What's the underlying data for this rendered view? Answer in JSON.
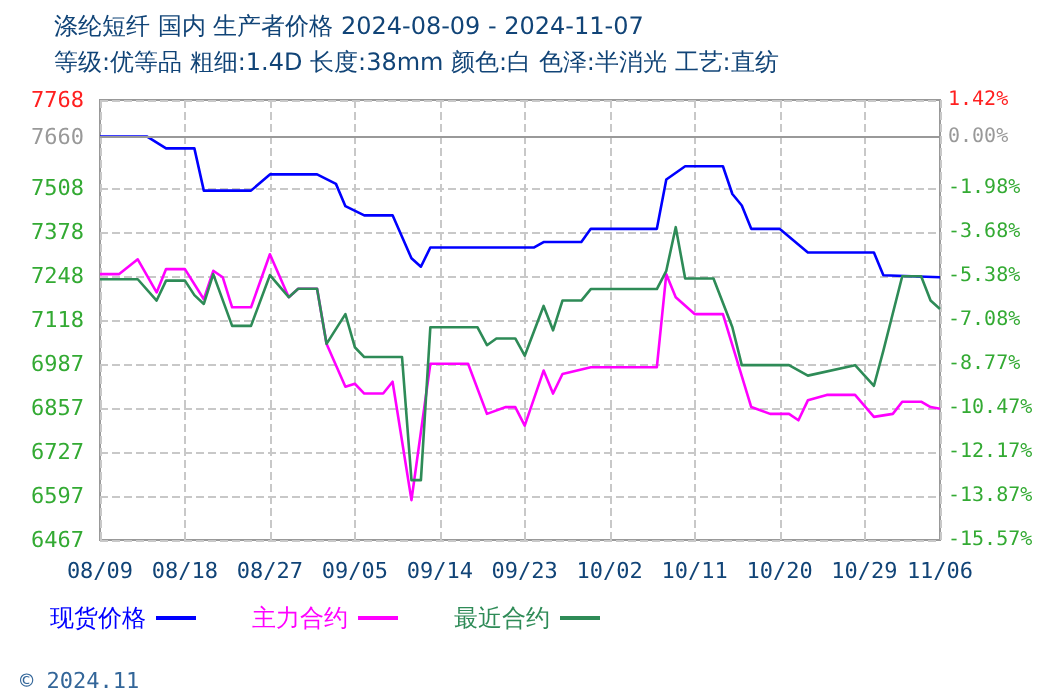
{
  "chart_data": {
    "type": "line",
    "title": "涤纶短纤 国内 生产者价格 2024-08-09 - 2024-11-07",
    "subtitle": "等级:优等品 粗细:1.4D 长度:38mm 颜色:白 色泽:半消光 工艺:直纺",
    "annotations": [
      "© 2024.11"
    ],
    "xlim": [
      "2024-08-09",
      "2024-11-06"
    ],
    "xticks": [
      {
        "value": "2024-08-09",
        "label": "08/09"
      },
      {
        "value": "2024-08-18",
        "label": "08/18"
      },
      {
        "value": "2024-08-27",
        "label": "08/27"
      },
      {
        "value": "2024-09-05",
        "label": "09/05"
      },
      {
        "value": "2024-09-14",
        "label": "09/14"
      },
      {
        "value": "2024-09-23",
        "label": "09/23"
      },
      {
        "value": "2024-10-02",
        "label": "10/02"
      },
      {
        "value": "2024-10-11",
        "label": "10/11"
      },
      {
        "value": "2024-10-20",
        "label": "10/20"
      },
      {
        "value": "2024-10-29",
        "label": "10/29"
      },
      {
        "value": "2024-11-06",
        "label": "11/06"
      }
    ],
    "ylim": [
      6467,
      7768
    ],
    "yticks": [
      6467,
      6597,
      6727,
      6857,
      6987,
      7118,
      7248,
      7378,
      7508,
      7660,
      7768
    ],
    "y2lim": [
      -15.57,
      1.42
    ],
    "y2ticks": [
      {
        "value": -15.57,
        "label": "-15.57%"
      },
      {
        "value": -13.87,
        "label": "-13.87%"
      },
      {
        "value": -12.17,
        "label": "-12.17%"
      },
      {
        "value": -10.47,
        "label": "-10.47%"
      },
      {
        "value": -8.77,
        "label": "-8.77%"
      },
      {
        "value": -7.08,
        "label": "-7.08%"
      },
      {
        "value": -5.38,
        "label": "-5.38%"
      },
      {
        "value": -3.68,
        "label": "-3.68%"
      },
      {
        "value": -1.98,
        "label": "-1.98%"
      },
      {
        "value": 0,
        "label": "0.00%"
      },
      {
        "value": 1.42,
        "label": "1.42%"
      }
    ],
    "ref_lines": [
      {
        "axis": "y2",
        "value": 0,
        "color": "#999999",
        "line_style": "solid"
      }
    ],
    "grid": true,
    "legend": "bottom left",
    "marker": "none",
    "line_style": "solid",
    "series": [
      {
        "name": "现货价格",
        "color": "#0000ff",
        "x": [
          "2024-08-09",
          "2024-08-14",
          "2024-08-16",
          "2024-08-19",
          "2024-08-20",
          "2024-08-25",
          "2024-08-27",
          "2024-09-01",
          "2024-09-03",
          "2024-09-04",
          "2024-09-06",
          "2024-09-09",
          "2024-09-11",
          "2024-09-12",
          "2024-09-13",
          "2024-09-24",
          "2024-09-25",
          "2024-09-29",
          "2024-09-30",
          "2024-10-07",
          "2024-10-08",
          "2024-10-10",
          "2024-10-14",
          "2024-10-15",
          "2024-10-16",
          "2024-10-17",
          "2024-10-20",
          "2024-10-23",
          "2024-10-30",
          "2024-10-31",
          "2024-11-06"
        ],
        "values": [
          7660,
          7660,
          7625,
          7625,
          7500,
          7500,
          7548,
          7548,
          7520,
          7454,
          7427,
          7427,
          7300,
          7275,
          7332,
          7332,
          7348,
          7348,
          7387,
          7387,
          7533,
          7572,
          7572,
          7490,
          7456,
          7387,
          7387,
          7317,
          7317,
          7250,
          7244
        ]
      },
      {
        "name": "主力合约",
        "color": "#ff00ff",
        "x": [
          "2024-08-09",
          "2024-08-11",
          "2024-08-13",
          "2024-08-15",
          "2024-08-16",
          "2024-08-18",
          "2024-08-20",
          "2024-08-21",
          "2024-08-22",
          "2024-08-23",
          "2024-08-25",
          "2024-08-27",
          "2024-08-29",
          "2024-08-30",
          "2024-09-01",
          "2024-09-02",
          "2024-09-04",
          "2024-09-05",
          "2024-09-06",
          "2024-09-08",
          "2024-09-09",
          "2024-09-11",
          "2024-09-13",
          "2024-09-17",
          "2024-09-19",
          "2024-09-21",
          "2024-09-22",
          "2024-09-23",
          "2024-09-25",
          "2024-09-26",
          "2024-09-27",
          "2024-09-30",
          "2024-10-07",
          "2024-10-08",
          "2024-10-09",
          "2024-10-11",
          "2024-10-14",
          "2024-10-17",
          "2024-10-19",
          "2024-10-21",
          "2024-10-22",
          "2024-10-23",
          "2024-10-25",
          "2024-10-28",
          "2024-10-30",
          "2024-11-01",
          "2024-11-02",
          "2024-11-04",
          "2024-11-05",
          "2024-11-06"
        ],
        "values": [
          7253,
          7253,
          7297,
          7199,
          7268,
          7268,
          7179,
          7263,
          7244,
          7155,
          7155,
          7312,
          7185,
          7210,
          7210,
          7047,
          6920,
          6929,
          6900,
          6900,
          6935,
          6585,
          6988,
          6988,
          6840,
          6860,
          6860,
          6805,
          6968,
          6900,
          6958,
          6978,
          6978,
          7253,
          7185,
          7135,
          7135,
          6860,
          6840,
          6840,
          6821,
          6880,
          6896,
          6896,
          6831,
          6840,
          6876,
          6876,
          6860,
          6855
        ]
      },
      {
        "name": "最近合约",
        "color": "#2e8b57",
        "x": [
          "2024-08-09",
          "2024-08-13",
          "2024-08-15",
          "2024-08-16",
          "2024-08-18",
          "2024-08-19",
          "2024-08-20",
          "2024-08-21",
          "2024-08-23",
          "2024-08-25",
          "2024-08-27",
          "2024-08-29",
          "2024-08-30",
          "2024-09-01",
          "2024-09-02",
          "2024-09-04",
          "2024-09-05",
          "2024-09-06",
          "2024-09-10",
          "2024-09-11",
          "2024-09-12",
          "2024-09-13",
          "2024-09-18",
          "2024-09-19",
          "2024-09-20",
          "2024-09-22",
          "2024-09-23",
          "2024-09-25",
          "2024-09-26",
          "2024-09-27",
          "2024-09-29",
          "2024-09-30",
          "2024-10-07",
          "2024-10-08",
          "2024-10-09",
          "2024-10-10",
          "2024-10-13",
          "2024-10-15",
          "2024-10-16",
          "2024-10-21",
          "2024-10-23",
          "2024-10-28",
          "2024-10-30",
          "2024-10-31",
          "2024-11-02",
          "2024-11-04",
          "2024-11-05",
          "2024-11-06"
        ],
        "values": [
          7238,
          7238,
          7175,
          7234,
          7234,
          7191,
          7165,
          7253,
          7100,
          7100,
          7250,
          7185,
          7210,
          7210,
          7047,
          7135,
          7037,
          7008,
          7008,
          6644,
          6644,
          7096,
          7096,
          7043,
          7063,
          7063,
          7012,
          7159,
          7087,
          7175,
          7175,
          7209,
          7209,
          7263,
          7392,
          7240,
          7240,
          7096,
          6984,
          6984,
          6953,
          6984,
          6923,
          7027,
          7247,
          7247,
          7175,
          7150
        ]
      }
    ]
  }
}
